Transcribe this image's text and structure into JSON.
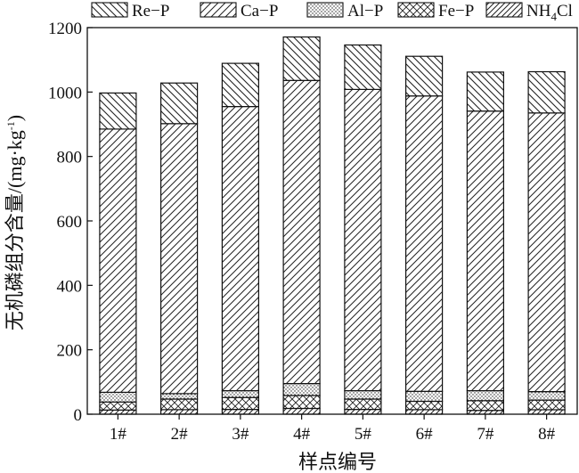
{
  "chart_data": {
    "type": "bar",
    "stacked": true,
    "title": "",
    "xlabel": "样点编号",
    "ylabel": {
      "main": "无机磷组分含量/(mg·kg",
      "exp": "-1",
      "close": ")"
    },
    "ylim": [
      0,
      1200
    ],
    "yticks": [
      0,
      200,
      400,
      600,
      800,
      1000,
      1200
    ],
    "categories": [
      "1#",
      "2#",
      "3#",
      "4#",
      "5#",
      "6#",
      "7#",
      "8#"
    ],
    "series": [
      {
        "name": "NH4Cl",
        "values": [
          13,
          14,
          15,
          18,
          15,
          14,
          12,
          14
        ]
      },
      {
        "name": "Fe-P",
        "values": [
          25,
          33,
          37,
          40,
          32,
          26,
          30,
          30
        ]
      },
      {
        "name": "Al-P",
        "values": [
          30,
          17,
          21,
          37,
          26,
          31,
          31,
          26
        ]
      },
      {
        "name": "Ca-P",
        "values": [
          817,
          838,
          882,
          941,
          935,
          917,
          868,
          865
        ]
      },
      {
        "name": "Re-P",
        "values": [
          112,
          126,
          134,
          135,
          138,
          123,
          121,
          128
        ]
      }
    ],
    "legend": {
      "position": "top",
      "entries": [
        {
          "series": "Re-P",
          "label": "Re−P"
        },
        {
          "series": "Ca-P",
          "label": "Ca−P"
        },
        {
          "series": "Al-P",
          "label": "Al−P"
        },
        {
          "series": "Fe-P",
          "label": "Fe−P"
        },
        {
          "series": "NH4Cl",
          "label": "NH",
          "sub": "4",
          "tail": "Cl"
        }
      ]
    },
    "grid": false
  }
}
